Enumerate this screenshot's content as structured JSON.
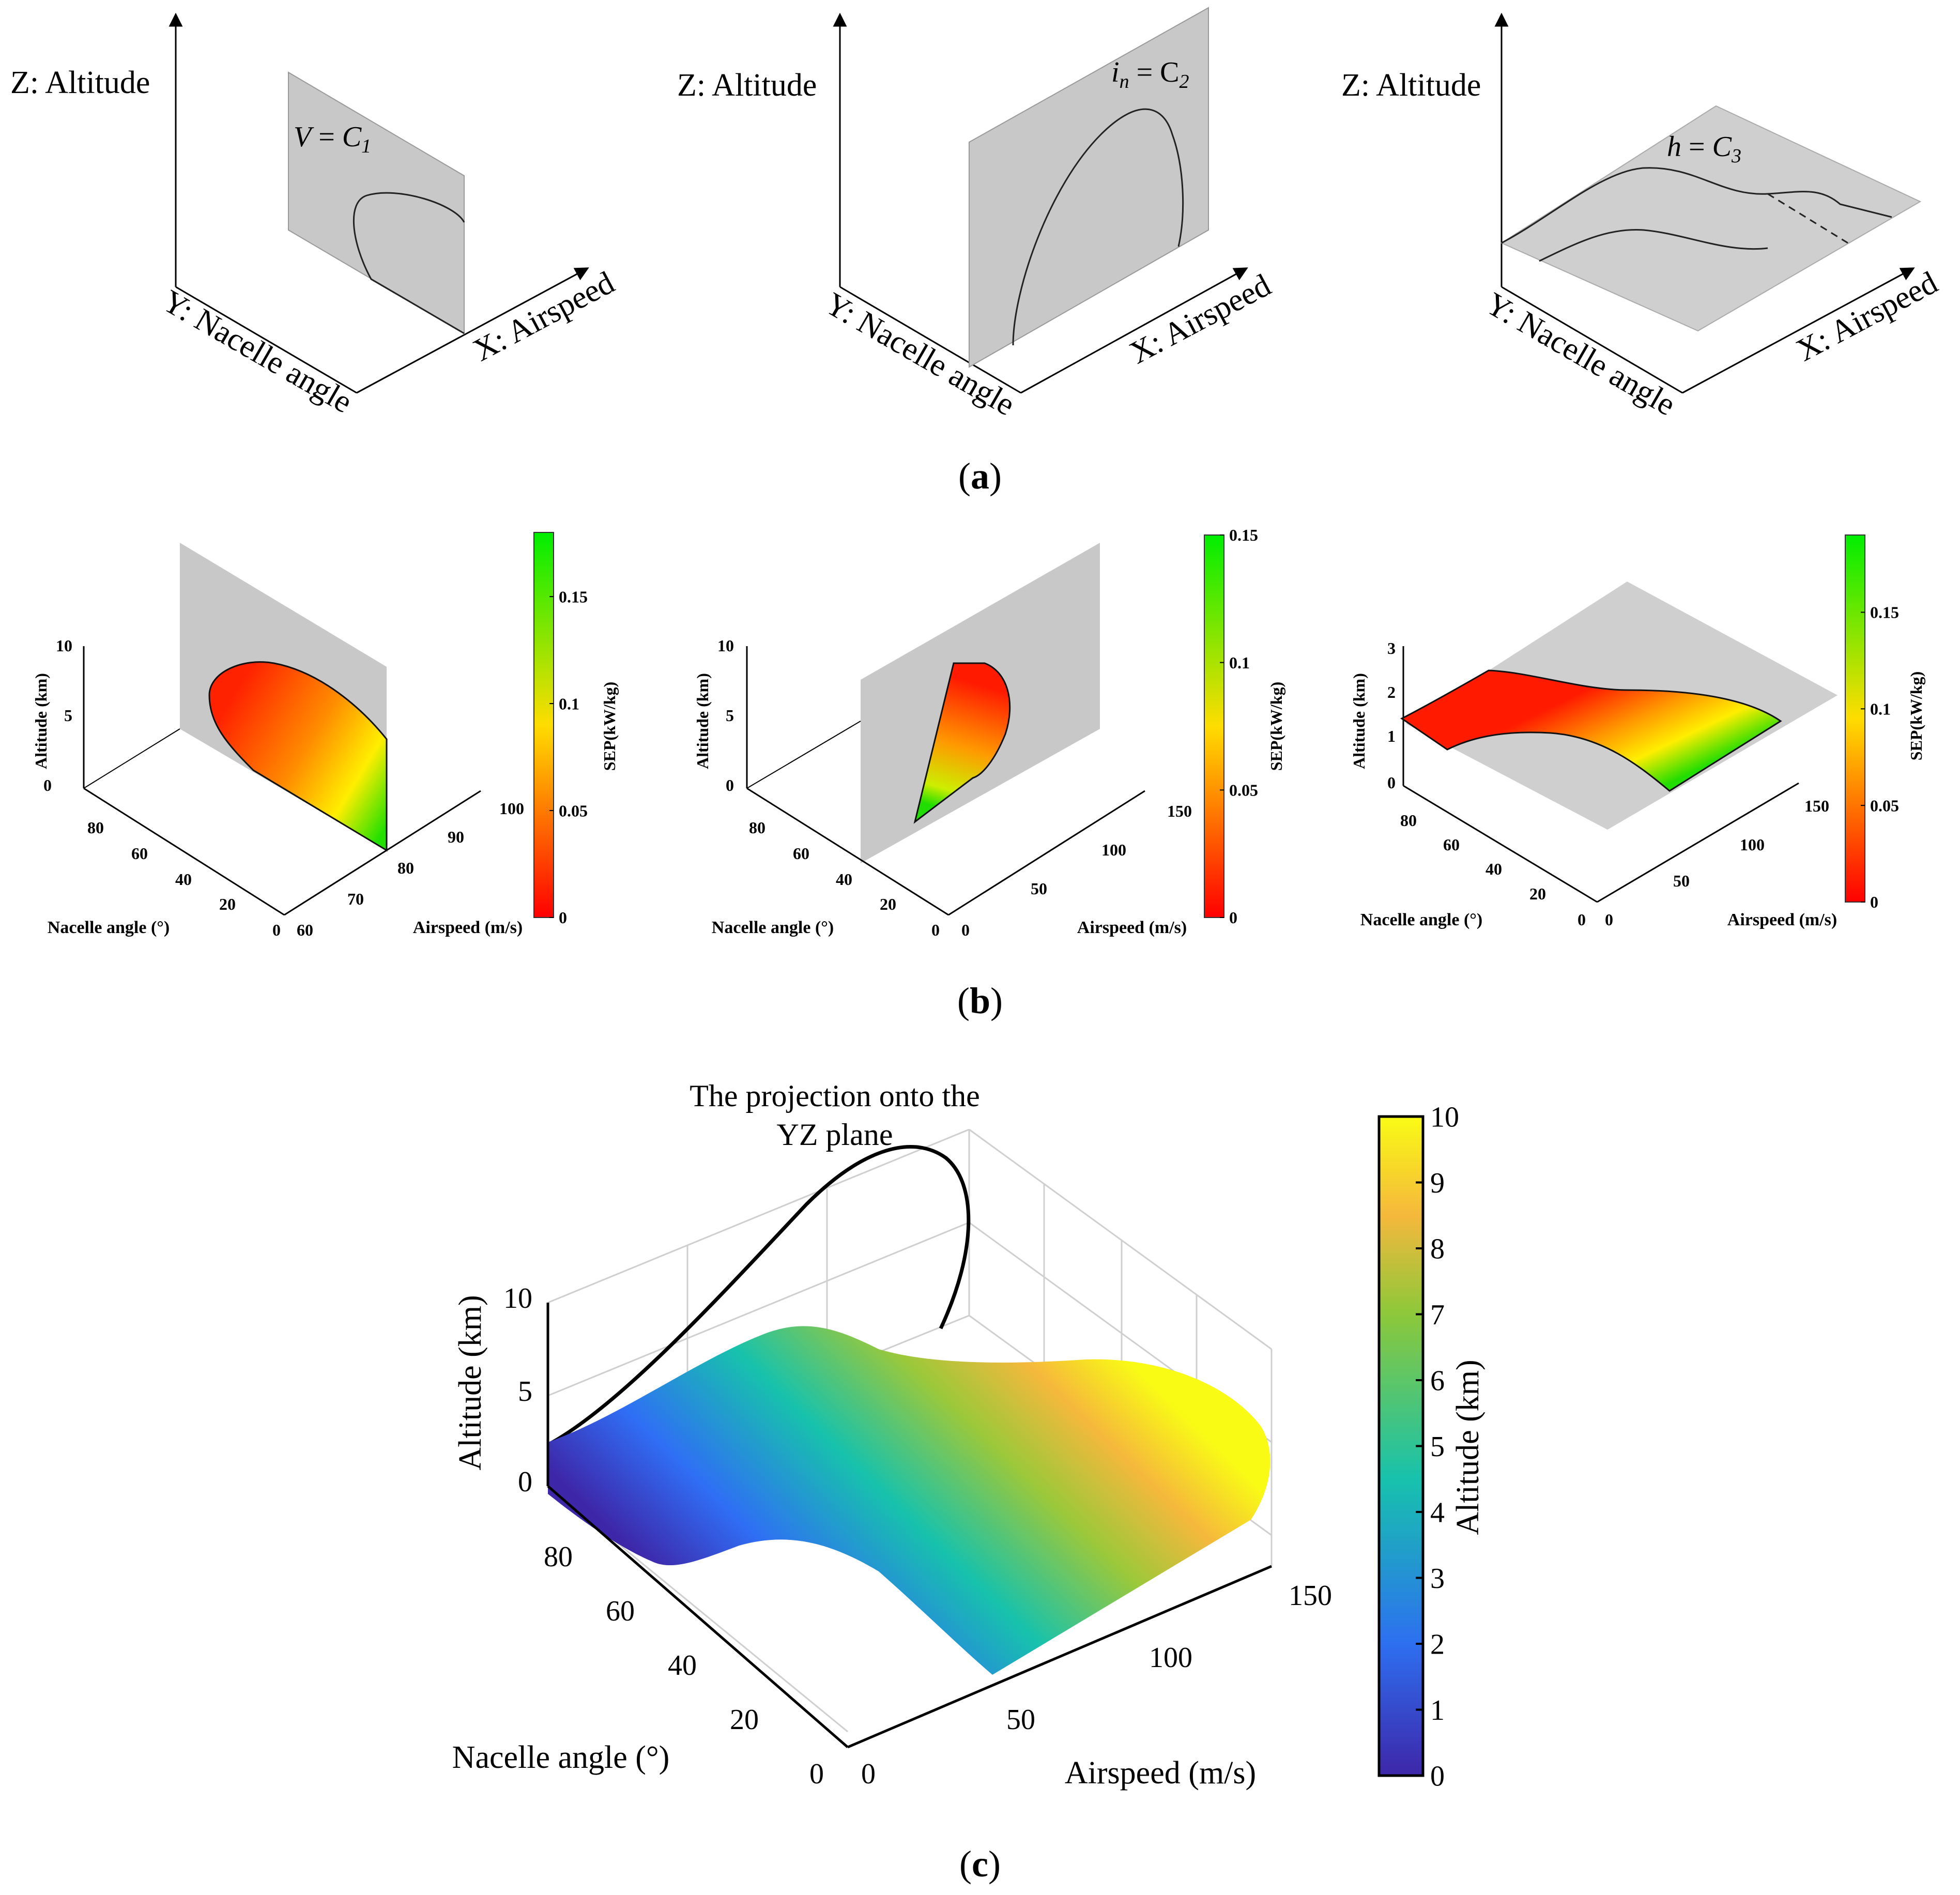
{
  "panel_labels": {
    "a": "a",
    "b": "b",
    "c": "c"
  },
  "colors": {
    "plane": "#c8c8c8",
    "axis": "#000000",
    "grid": "#cfcfcf",
    "sep_low": "#ff0000",
    "sep_mid": "#ffdd00",
    "sep_high": "#00ee00",
    "alt_low": "#3e26a8",
    "alt_mid": "#17c2ac",
    "alt_high": "#f9fb15"
  },
  "chart_data": [
    {
      "type": "diagram-3d",
      "panel": "a",
      "axis_z": "Z: Altitude",
      "axis_y": "Y: Nacelle angle",
      "axis_x": "X: Airspeed",
      "plane_label": {
        "lhs": "V",
        "rhs": "C",
        "sub": "1"
      }
    },
    {
      "type": "diagram-3d",
      "panel": "a",
      "axis_z": "Z: Altitude",
      "axis_y": "Y: Nacelle angle",
      "axis_x": "X: Airspeed",
      "plane_label": {
        "lhs": "i",
        "lhs_sub": "n",
        "rhs": "C",
        "sub": "2"
      }
    },
    {
      "type": "diagram-3d",
      "panel": "a",
      "axis_z": "Z: Altitude",
      "axis_y": "Y: Nacelle angle",
      "axis_x": "X: Airspeed",
      "plane_label": {
        "lhs": "h",
        "rhs": "C",
        "sub": "3"
      }
    },
    {
      "type": "surface-3d",
      "panel": "b",
      "zlabel": "Altitude (km)",
      "ylabel": "Nacelle angle (°)",
      "xlabel": "Airspeed (m/s)",
      "z_ticks": [
        "0",
        "5",
        "10"
      ],
      "y_ticks": [
        "0",
        "20",
        "40",
        "60",
        "80"
      ],
      "x_ticks": [
        "60",
        "70",
        "80",
        "90",
        "100"
      ],
      "colorbar": {
        "label": "SEP(kW/kg)",
        "ticks": [
          "0",
          "0.05",
          "0.1",
          "0.15"
        ],
        "range": [
          0,
          0.18
        ]
      }
    },
    {
      "type": "surface-3d",
      "panel": "b",
      "zlabel": "Altitude (km)",
      "ylabel": "Nacelle angle (°)",
      "xlabel": "Airspeed (m/s)",
      "z_ticks": [
        "0",
        "5",
        "10"
      ],
      "y_ticks": [
        "0",
        "20",
        "40",
        "60",
        "80"
      ],
      "x_ticks": [
        "0",
        "50",
        "100",
        "150"
      ],
      "colorbar": {
        "label": "SEP(kW/kg)",
        "ticks": [
          "0",
          "0.05",
          "0.1",
          "0.15"
        ],
        "range": [
          0,
          0.15
        ]
      }
    },
    {
      "type": "surface-3d",
      "panel": "b",
      "zlabel": "Altitude (km)",
      "ylabel": "Nacelle angle (°)",
      "xlabel": "Airspeed (m/s)",
      "z_ticks": [
        "0",
        "1",
        "2",
        "3"
      ],
      "y_ticks": [
        "0",
        "20",
        "40",
        "60",
        "80"
      ],
      "x_ticks": [
        "0",
        "50",
        "100",
        "150"
      ],
      "colorbar": {
        "label": "SEP(kW/kg)",
        "ticks": [
          "0",
          "0.05",
          "0.1",
          "0.15"
        ],
        "range": [
          0,
          0.19
        ]
      }
    },
    {
      "type": "surface-3d",
      "panel": "c",
      "annotation": [
        "The projection onto the",
        "YZ plane"
      ],
      "zlabel": "Altitude (km)",
      "ylabel": "Nacelle angle (°)",
      "xlabel": "Airspeed (m/s)",
      "z_ticks": [
        "0",
        "5",
        "10"
      ],
      "y_ticks": [
        "0",
        "20",
        "40",
        "60",
        "80"
      ],
      "x_ticks": [
        "0",
        "50",
        "100",
        "150"
      ],
      "colorbar": {
        "label": "Altitude (km)",
        "ticks": [
          "0",
          "1",
          "2",
          "3",
          "4",
          "5",
          "6",
          "7",
          "8",
          "9",
          "10"
        ],
        "range": [
          0,
          10
        ]
      }
    }
  ]
}
